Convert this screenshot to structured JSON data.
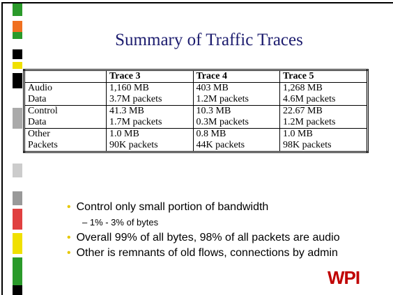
{
  "title": "Summary of Traffic Traces",
  "table": {
    "header": [
      "Trace 3",
      "Trace 4",
      "Trace 5"
    ],
    "rows": [
      {
        "label": [
          "Audio",
          "Data"
        ],
        "cells": [
          [
            "1,160 MB",
            "3.7M packets"
          ],
          [
            "403 MB",
            "1.2M packets"
          ],
          [
            "1,268 MB",
            "4.6M packets"
          ]
        ]
      },
      {
        "label": [
          "Control",
          "Data"
        ],
        "cells": [
          [
            "41.3 MB",
            "1.7M packets"
          ],
          [
            "10.3 MB",
            "0.3M packets"
          ],
          [
            "22.67 MB",
            "1.2M packets"
          ]
        ]
      },
      {
        "label": [
          "Other",
          "Packets"
        ],
        "cells": [
          [
            "1.0 MB",
            "90K packets"
          ],
          [
            "0.8 MB",
            "44K packets"
          ],
          [
            "1.0 MB",
            "98K packets"
          ]
        ]
      }
    ]
  },
  "bullets": [
    {
      "text": "Control only small portion of bandwidth",
      "sub": [
        "1% - 3% of bytes"
      ]
    },
    {
      "text": "Overall 99% of all bytes, 98% of all packets are audio"
    },
    {
      "text": "Other is remnants of old flows, connections by admin"
    }
  ],
  "logo": "WPI"
}
